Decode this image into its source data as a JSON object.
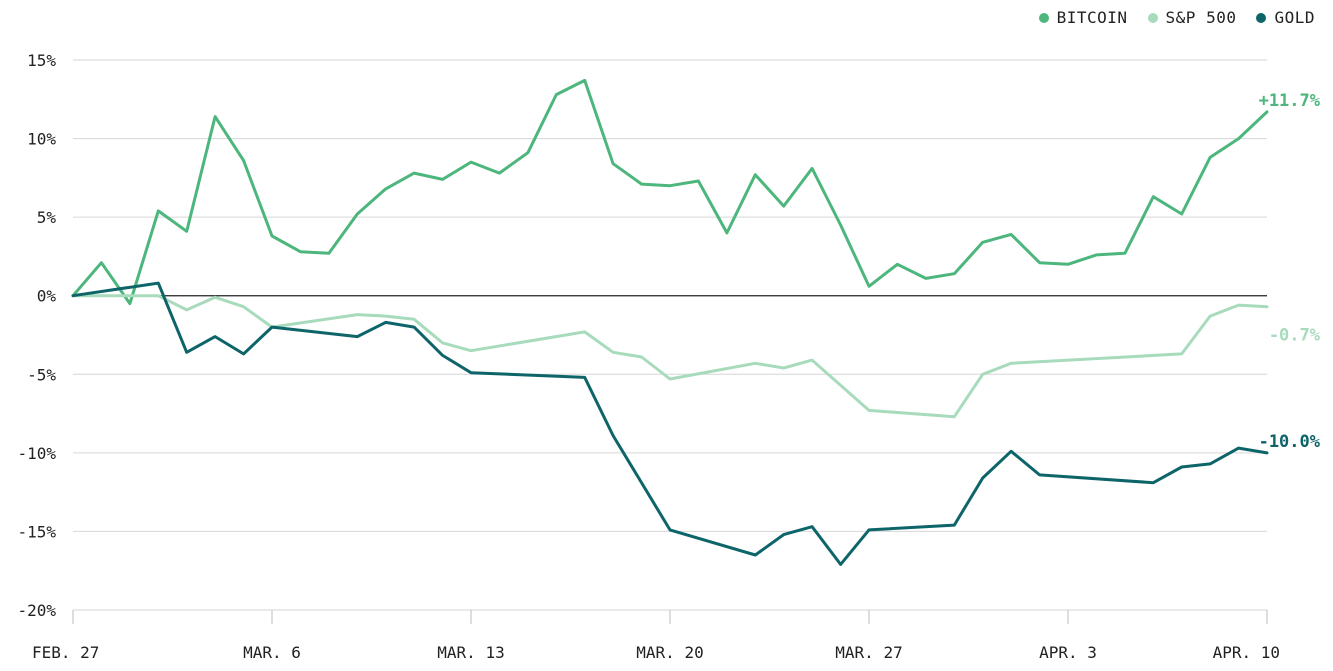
{
  "chart_data": {
    "type": "line",
    "x": [
      "Feb 27",
      "Feb 28",
      "Mar 1",
      "Mar 2",
      "Mar 3",
      "Mar 4",
      "Mar 5",
      "Mar 6",
      "Mar 7",
      "Mar 8",
      "Mar 9",
      "Mar 10",
      "Mar 11",
      "Mar 12",
      "Mar 13",
      "Mar 14",
      "Mar 15",
      "Mar 16",
      "Mar 17",
      "Mar 18",
      "Mar 19",
      "Mar 20",
      "Mar 21",
      "Mar 22",
      "Mar 23",
      "Mar 24",
      "Mar 25",
      "Mar 26",
      "Mar 27",
      "Mar 28",
      "Mar 29",
      "Mar 30",
      "Mar 31",
      "Apr 1",
      "Apr 2",
      "Apr 3",
      "Apr 4",
      "Apr 5",
      "Apr 6",
      "Apr 7",
      "Apr 8",
      "Apr 9",
      "Apr 10"
    ],
    "x_ticks": [
      {
        "label": "FEB. 27",
        "index": 0
      },
      {
        "label": "MAR. 6",
        "index": 7
      },
      {
        "label": "MAR. 13",
        "index": 14
      },
      {
        "label": "MAR. 20",
        "index": 21
      },
      {
        "label": "MAR. 27",
        "index": 28
      },
      {
        "label": "APR. 3",
        "index": 35
      },
      {
        "label": "APR. 10",
        "index": 42
      }
    ],
    "ylim": [
      -20,
      15
    ],
    "y_ticks": [
      {
        "value": 15,
        "label": "15%"
      },
      {
        "value": 10,
        "label": "10%"
      },
      {
        "value": 5,
        "label": "5%"
      },
      {
        "value": 0,
        "label": "0%"
      },
      {
        "value": -5,
        "label": "-5%"
      },
      {
        "value": -10,
        "label": "-10%"
      },
      {
        "value": -15,
        "label": "-15%"
      },
      {
        "value": -20,
        "label": "-20%"
      }
    ],
    "grid": true,
    "legend_position": "top-right",
    "series": [
      {
        "name": "BITCOIN",
        "color": "#4cb67c",
        "end_label": "+11.7%",
        "values": [
          0,
          2.1,
          -0.5,
          5.4,
          4.1,
          11.4,
          8.6,
          3.8,
          2.8,
          2.7,
          5.2,
          6.8,
          7.8,
          7.4,
          8.5,
          7.8,
          9.1,
          12.8,
          13.7,
          8.4,
          7.1,
          7.0,
          7.3,
          4.0,
          7.7,
          5.7,
          8.1,
          4.5,
          0.6,
          2.0,
          1.1,
          1.4,
          3.4,
          3.9,
          2.1,
          2.0,
          2.6,
          2.7,
          6.3,
          5.2,
          8.8,
          10.0,
          11.7
        ]
      },
      {
        "name": "S&P 500",
        "color": "#a8dbbc",
        "end_label": "-0.7%",
        "values": [
          0,
          0,
          0,
          0,
          -0.9,
          -0.1,
          -0.7,
          -2.0,
          null,
          null,
          -1.2,
          -1.3,
          -1.5,
          -3.0,
          -3.5,
          null,
          null,
          null,
          -2.3,
          -3.6,
          -3.9,
          -5.3,
          null,
          null,
          -4.3,
          -4.6,
          -4.1,
          null,
          -7.3,
          null,
          null,
          -7.7,
          -5.0,
          -4.3,
          null,
          null,
          null,
          null,
          null,
          -3.7,
          -1.3,
          -0.6,
          -0.7
        ]
      },
      {
        "name": "GOLD",
        "color": "#0e6569",
        "end_label": "-10.0%",
        "values": [
          0,
          null,
          null,
          0.8,
          -3.6,
          -2.6,
          -3.7,
          -2.0,
          null,
          null,
          -2.6,
          -1.7,
          -2.0,
          -3.8,
          -4.9,
          null,
          null,
          null,
          -5.2,
          -8.9,
          null,
          -14.9,
          null,
          null,
          -16.5,
          -15.2,
          -14.7,
          -17.1,
          -14.9,
          null,
          null,
          -14.6,
          -11.6,
          -9.9,
          -11.4,
          null,
          null,
          null,
          -11.9,
          -10.9,
          -10.7,
          -9.7,
          -10.0
        ]
      }
    ]
  }
}
